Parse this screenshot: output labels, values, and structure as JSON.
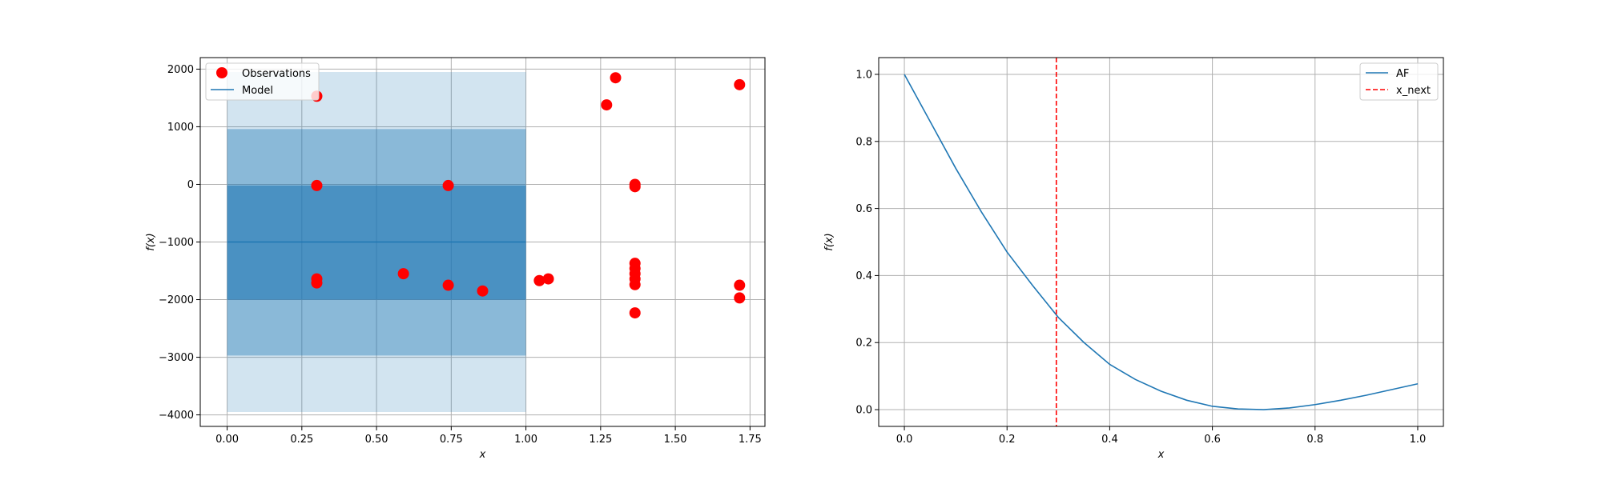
{
  "chart_data": [
    {
      "type": "scatter",
      "xlabel": "x",
      "ylabel": "f(x)",
      "xlim": [
        -0.09,
        1.8
      ],
      "ylim": [
        -4200,
        2200
      ],
      "xticks": [
        0.0,
        0.25,
        0.5,
        0.75,
        1.0,
        1.25,
        1.5,
        1.75
      ],
      "xtick_labels": [
        "0.00",
        "0.25",
        "0.50",
        "0.75",
        "1.00",
        "1.25",
        "1.50",
        "1.75"
      ],
      "yticks": [
        -4000,
        -3000,
        -2000,
        -1000,
        0,
        1000,
        2000
      ],
      "ytick_labels": [
        "−4000",
        "−3000",
        "−2000",
        "−1000",
        "0",
        "1000",
        "2000"
      ],
      "grid": true,
      "legend": {
        "placement": "upper-left",
        "entries": [
          "Observations",
          "Model"
        ]
      },
      "observations": {
        "name": "Observations",
        "color": "#ff0000",
        "points": [
          [
            0.3,
            1530
          ],
          [
            0.3,
            -20
          ],
          [
            0.3,
            -1640
          ],
          [
            0.3,
            -1710
          ],
          [
            0.59,
            -1550
          ],
          [
            0.74,
            -20
          ],
          [
            0.74,
            -1750
          ],
          [
            0.855,
            -1850
          ],
          [
            1.045,
            -1670
          ],
          [
            1.075,
            -1640
          ],
          [
            1.27,
            1380
          ],
          [
            1.3,
            1850
          ],
          [
            1.365,
            0
          ],
          [
            1.365,
            -40
          ],
          [
            1.365,
            -1370
          ],
          [
            1.365,
            -1460
          ],
          [
            1.365,
            -1550
          ],
          [
            1.365,
            -1640
          ],
          [
            1.365,
            -1740
          ],
          [
            1.365,
            -2230
          ],
          [
            1.715,
            1730
          ],
          [
            1.715,
            -1750
          ],
          [
            1.715,
            -1970
          ]
        ]
      },
      "model": {
        "name": "Model",
        "color": "#1f77b4",
        "x": [
          0.0,
          1.0
        ],
        "mean": -1000,
        "bands": [
          {
            "lower": -2000,
            "upper": -20,
            "opacity": 0.6
          },
          {
            "lower": -2970,
            "upper": 960,
            "opacity": 0.4
          },
          {
            "lower": -3950,
            "upper": 1950,
            "opacity": 0.2
          }
        ]
      }
    },
    {
      "type": "line",
      "xlabel": "x",
      "ylabel": "f(x)",
      "xlim": [
        -0.05,
        1.05
      ],
      "ylim": [
        -0.05,
        1.05
      ],
      "xticks": [
        0.0,
        0.2,
        0.4,
        0.6,
        0.8,
        1.0
      ],
      "xtick_labels": [
        "0.0",
        "0.2",
        "0.4",
        "0.6",
        "0.8",
        "1.0"
      ],
      "yticks": [
        0.0,
        0.2,
        0.4,
        0.6,
        0.8,
        1.0
      ],
      "ytick_labels": [
        "0.0",
        "0.2",
        "0.4",
        "0.6",
        "0.8",
        "1.0"
      ],
      "grid": true,
      "legend": {
        "placement": "upper-right",
        "entries": [
          "AF",
          "x_next"
        ]
      },
      "series": [
        {
          "name": "AF",
          "color": "#1f77b4",
          "x": [
            0.0,
            0.05,
            0.1,
            0.15,
            0.2,
            0.25,
            0.3,
            0.35,
            0.4,
            0.45,
            0.5,
            0.55,
            0.6,
            0.65,
            0.7,
            0.75,
            0.8,
            0.85,
            0.9,
            0.95,
            1.0
          ],
          "y": [
            1.0,
            0.86,
            0.72,
            0.59,
            0.47,
            0.37,
            0.275,
            0.2,
            0.135,
            0.09,
            0.055,
            0.028,
            0.01,
            0.002,
            0.0,
            0.005,
            0.015,
            0.028,
            0.043,
            0.06,
            0.077
          ]
        }
      ],
      "vline": {
        "name": "x_next",
        "x": 0.296,
        "color": "#ff0000",
        "style": "dashed"
      }
    }
  ]
}
